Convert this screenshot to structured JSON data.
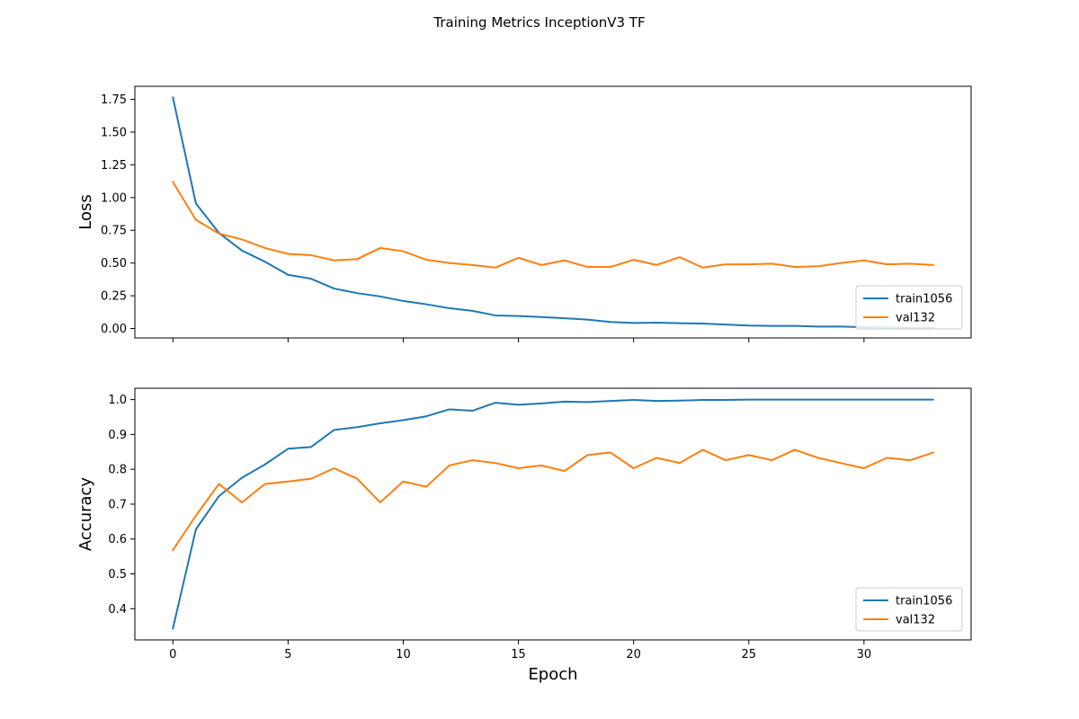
{
  "figure": {
    "title": "Training Metrics InceptionV3 TF"
  },
  "colors": {
    "train": "#1f77b4",
    "val": "#ff7f0e",
    "axes": "#000000",
    "legend_border": "#cccccc"
  },
  "chart_data": [
    {
      "type": "line",
      "title": "",
      "xlabel": "",
      "ylabel": "Loss",
      "xlim": [
        -1.65,
        34.65
      ],
      "ylim": [
        -0.072,
        1.85
      ],
      "xticks": [
        0,
        5,
        10,
        15,
        20,
        25,
        30
      ],
      "xtick_labels_visible": false,
      "yticks": [
        0.0,
        0.25,
        0.5,
        0.75,
        1.0,
        1.25,
        1.5,
        1.75
      ],
      "ytick_labels": [
        "0.00",
        "0.25",
        "0.50",
        "0.75",
        "1.00",
        "1.25",
        "1.50",
        "1.75"
      ],
      "grid": false,
      "legend": "lower-right",
      "x": [
        0,
        1,
        2,
        3,
        4,
        5,
        6,
        7,
        8,
        9,
        10,
        11,
        12,
        13,
        14,
        15,
        16,
        17,
        18,
        19,
        20,
        21,
        22,
        23,
        24,
        25,
        26,
        27,
        28,
        29,
        30,
        31,
        32,
        33
      ],
      "series": [
        {
          "name": "train1056",
          "values": [
            1.765,
            0.955,
            0.73,
            0.595,
            0.51,
            0.41,
            0.38,
            0.305,
            0.27,
            0.245,
            0.21,
            0.185,
            0.155,
            0.135,
            0.1,
            0.095,
            0.088,
            0.078,
            0.068,
            0.05,
            0.042,
            0.045,
            0.04,
            0.038,
            0.03,
            0.022,
            0.02,
            0.02,
            0.015,
            0.015,
            0.01,
            0.008,
            0.005,
            0.005
          ]
        },
        {
          "name": "val132",
          "values": [
            1.12,
            0.83,
            0.725,
            0.68,
            0.615,
            0.57,
            0.56,
            0.52,
            0.53,
            0.615,
            0.59,
            0.525,
            0.5,
            0.485,
            0.465,
            0.54,
            0.485,
            0.52,
            0.47,
            0.47,
            0.525,
            0.485,
            0.545,
            0.465,
            0.49,
            0.49,
            0.495,
            0.47,
            0.475,
            0.5,
            0.52,
            0.49,
            0.495,
            0.485
          ]
        }
      ]
    },
    {
      "type": "line",
      "title": "",
      "xlabel": "Epoch",
      "ylabel": "Accuracy",
      "xlim": [
        -1.65,
        34.65
      ],
      "ylim": [
        0.3105,
        1.0325
      ],
      "xticks": [
        0,
        5,
        10,
        15,
        20,
        25,
        30
      ],
      "xtick_labels": [
        "0",
        "5",
        "10",
        "15",
        "20",
        "25",
        "30"
      ],
      "yticks": [
        0.4,
        0.5,
        0.6,
        0.7,
        0.8,
        0.9,
        1.0
      ],
      "ytick_labels": [
        "0.4",
        "0.5",
        "0.6",
        "0.7",
        "0.8",
        "0.9",
        "1.0"
      ],
      "grid": false,
      "legend": "lower-right",
      "x": [
        0,
        1,
        2,
        3,
        4,
        5,
        6,
        7,
        8,
        9,
        10,
        11,
        12,
        13,
        14,
        15,
        16,
        17,
        18,
        19,
        20,
        21,
        22,
        23,
        24,
        25,
        26,
        27,
        28,
        29,
        30,
        31,
        32,
        33
      ],
      "series": [
        {
          "name": "train1056",
          "values": [
            0.343,
            0.628,
            0.723,
            0.776,
            0.814,
            0.859,
            0.864,
            0.913,
            0.921,
            0.932,
            0.941,
            0.952,
            0.972,
            0.968,
            0.991,
            0.985,
            0.989,
            0.994,
            0.993,
            0.996,
            0.999,
            0.996,
            0.997,
            0.999,
            0.999,
            1.0,
            1.0,
            1.0,
            1.0,
            1.0,
            1.0,
            1.0,
            1.0,
            1.0
          ]
        },
        {
          "name": "val132",
          "values": [
            0.568,
            0.667,
            0.758,
            0.705,
            0.758,
            0.765,
            0.773,
            0.803,
            0.773,
            0.705,
            0.765,
            0.75,
            0.811,
            0.826,
            0.818,
            0.803,
            0.811,
            0.795,
            0.841,
            0.848,
            0.803,
            0.833,
            0.818,
            0.856,
            0.826,
            0.841,
            0.826,
            0.856,
            0.833,
            0.818,
            0.803,
            0.833,
            0.826,
            0.848
          ]
        }
      ]
    }
  ]
}
